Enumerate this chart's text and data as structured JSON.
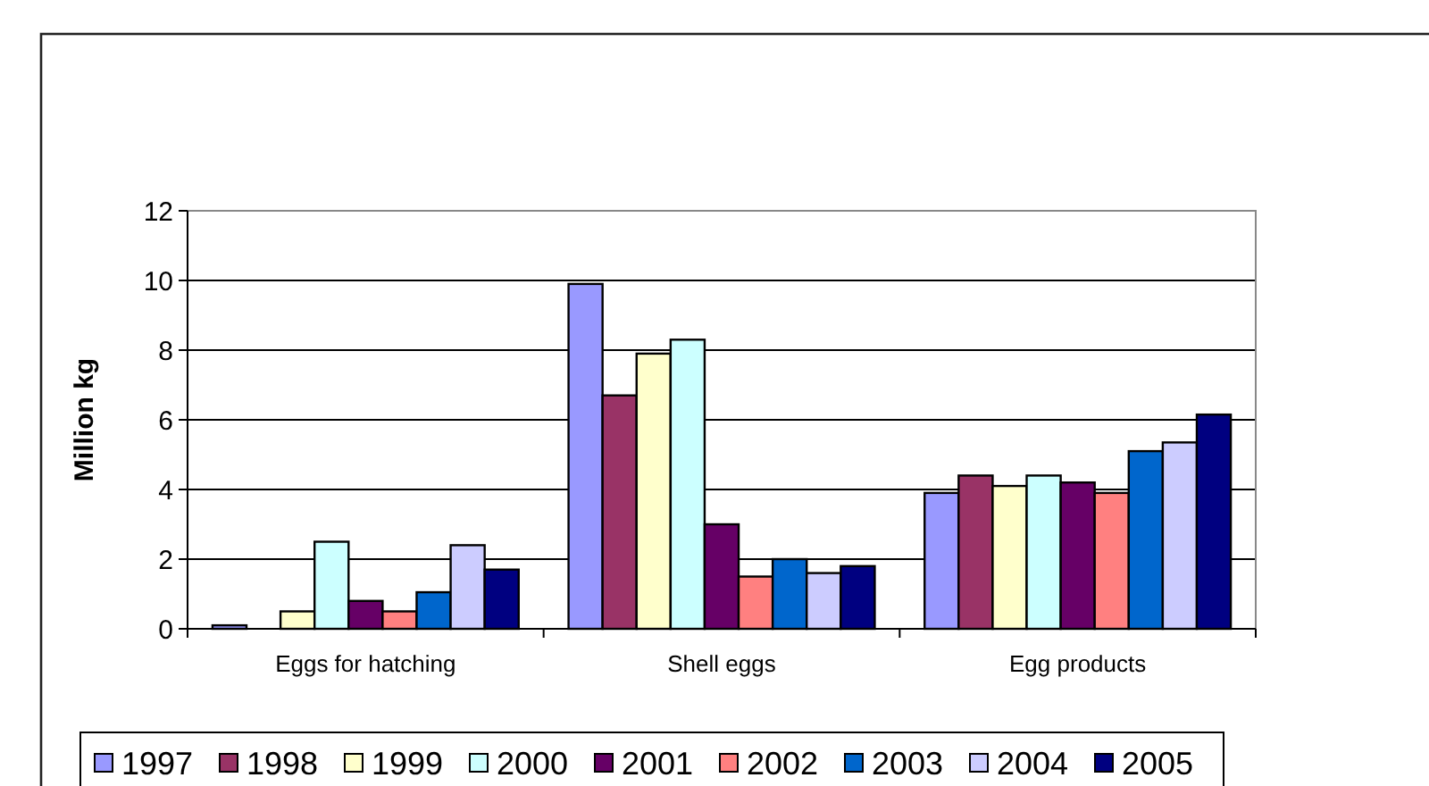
{
  "chart_data": {
    "type": "bar",
    "ylabel": "Million kg",
    "categories": [
      "Eggs for hatching",
      "Shell eggs",
      "Egg products"
    ],
    "series": [
      {
        "name": "1997",
        "color": "#9999ff",
        "values": [
          0.1,
          9.9,
          3.9
        ]
      },
      {
        "name": "1998",
        "color": "#993366",
        "values": [
          0,
          6.7,
          4.4
        ]
      },
      {
        "name": "1999",
        "color": "#ffffcc",
        "values": [
          0.5,
          7.9,
          4.1
        ]
      },
      {
        "name": "2000",
        "color": "#ccffff",
        "values": [
          2.5,
          8.3,
          4.4
        ]
      },
      {
        "name": "2001",
        "color": "#660066",
        "values": [
          0.8,
          3.0,
          4.2
        ]
      },
      {
        "name": "2002",
        "color": "#ff8080",
        "values": [
          0.5,
          1.5,
          3.9
        ]
      },
      {
        "name": "2003",
        "color": "#0066cc",
        "values": [
          1.05,
          2.0,
          5.1
        ]
      },
      {
        "name": "2004",
        "color": "#ccccff",
        "values": [
          2.4,
          1.6,
          5.35
        ]
      },
      {
        "name": "2005",
        "color": "#000080",
        "values": [
          1.7,
          1.8,
          6.15
        ]
      }
    ],
    "ylim": [
      0,
      12
    ],
    "yticks": [
      0,
      2,
      4,
      6,
      8,
      10,
      12
    ],
    "grid": "y",
    "legend": "bottom"
  }
}
